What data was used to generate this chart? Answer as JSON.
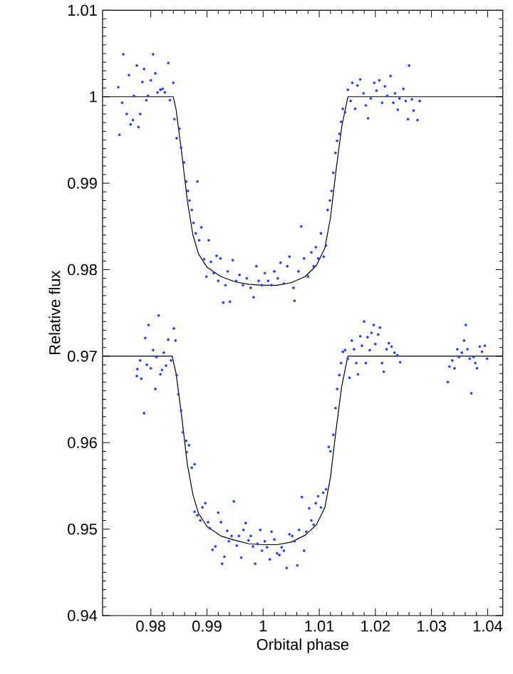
{
  "chart_data": {
    "type": "scatter",
    "xlabel": "Orbital phase",
    "ylabel": "Relative flux",
    "xlim": [
      0.9714,
      1.0427
    ],
    "ylim": [
      0.94,
      1.01
    ],
    "xticks": [
      0.98,
      0.99,
      1,
      1.01,
      1.02,
      1.03,
      1.04
    ],
    "yticks": [
      0.94,
      0.95,
      0.96,
      0.97,
      0.98,
      0.99,
      1,
      1.01
    ],
    "grid": false,
    "series": [
      {
        "marker": "circle",
        "color": "#1a3cff",
        "x": [
          0.9742,
          0.9744,
          0.9751,
          0.9749,
          0.9757,
          0.9761,
          0.9764,
          0.9768,
          0.977,
          0.9775,
          0.9778,
          0.9781,
          0.9785,
          0.9788,
          0.9792,
          0.9795,
          0.98,
          0.9804,
          0.9808,
          0.9812,
          0.9817,
          0.9821,
          0.9825,
          0.9831,
          0.9834,
          0.984,
          0.9842,
          0.9846,
          0.9851,
          0.9854,
          0.9859,
          0.9863,
          0.9866,
          0.9869,
          0.9873,
          0.9876,
          0.9883,
          0.988,
          0.9886,
          0.989,
          0.9895,
          0.9899,
          0.9903,
          0.9907,
          0.9912,
          0.9917,
          0.992,
          0.9924,
          0.9929,
          0.9933,
          0.9937,
          0.9941,
          0.9946,
          0.9952,
          0.9958,
          0.9964,
          0.9971,
          0.9978,
          0.9983,
          0.9988,
          0.9992,
          0.9998,
          1.0003,
          1.0009,
          1.0015,
          1.002,
          1.0026,
          1.0031,
          1.0037,
          1.0043,
          1.0047,
          1.0054,
          1.0056,
          1.0063,
          1.0068,
          1.0073,
          1.008,
          1.0086,
          1.009,
          1.0094,
          1.0098,
          1.0103,
          1.0108,
          1.0112,
          1.0115,
          1.0119,
          1.0122,
          1.0125,
          1.0129,
          1.0132,
          1.0136,
          1.0139,
          1.0142,
          1.0146,
          1.0151,
          1.0156,
          1.0159,
          1.0164,
          1.0168,
          1.0173,
          1.0179,
          1.0183,
          1.0187,
          1.0192,
          1.0198,
          1.0202,
          1.0207,
          1.0212,
          1.0217,
          1.0221,
          1.0227,
          1.0232,
          1.0235,
          1.024,
          1.0243,
          1.025,
          1.0254,
          1.0258,
          1.026,
          1.0265,
          1.0268,
          1.0275,
          1.0279
        ],
        "values": [
          1.0011,
          0.9956,
          1.0049,
          0.9993,
          0.998,
          1.0025,
          0.9968,
          0.9973,
          1.0001,
          1.0036,
          0.9965,
          0.998,
          1.0017,
          1.0032,
          0.9996,
          1.0001,
          1.0019,
          1.0049,
          1.0027,
          1.0005,
          1.0008,
          1.0009,
          1.0005,
          1.0039,
          0.9996,
          1.0016,
          0.9974,
          0.9952,
          0.9963,
          0.9941,
          0.9924,
          0.9902,
          0.9891,
          0.988,
          0.9869,
          0.9854,
          0.9902,
          0.9842,
          0.9834,
          0.9849,
          0.9812,
          0.9792,
          0.9834,
          0.9809,
          0.9796,
          0.9816,
          0.9787,
          0.9813,
          0.9762,
          0.9782,
          0.9798,
          0.9763,
          0.9811,
          0.9787,
          0.9794,
          0.9782,
          0.979,
          0.9779,
          0.9768,
          0.9804,
          0.9787,
          0.9782,
          0.9796,
          0.9787,
          0.9782,
          0.9798,
          0.979,
          0.9808,
          0.9784,
          0.9804,
          0.9815,
          0.9779,
          0.9764,
          0.9798,
          0.985,
          0.9813,
          0.9792,
          0.982,
          0.9804,
          0.9826,
          0.9813,
          0.9842,
          0.9815,
          0.9828,
          0.9869,
          0.988,
          0.9891,
          0.9912,
          0.9935,
          0.9949,
          0.9957,
          0.9971,
          0.9986,
          0.9982,
          1.0008,
          0.9995,
          1.0016,
          0.9986,
          1.0013,
          1.002,
          1.0004,
          0.999,
          0.9975,
          0.9998,
          1.0016,
          1.0007,
          1.0019,
          0.9993,
          1.0012,
          1.0001,
          1.0024,
          0.9993,
          1.0004,
          0.9985,
          0.9998,
          1.0009,
          0.9995,
          0.9974,
          1.0036,
          0.9997,
          0.9984,
          0.9973,
          0.9995
        ]
      },
      {
        "marker": "circle",
        "color": "#1a3cff",
        "x": [
          0.9775,
          0.9776,
          0.9781,
          0.9783,
          0.9788,
          0.979,
          0.9793,
          0.9796,
          0.98,
          0.9804,
          0.9808,
          0.981,
          0.9814,
          0.9817,
          0.982,
          0.9823,
          0.9827,
          0.9831,
          0.9836,
          0.9841,
          0.9844,
          0.9846,
          0.9849,
          0.9854,
          0.9857,
          0.9863,
          0.9864,
          0.9868,
          0.9873,
          0.9878,
          0.9878,
          0.9883,
          0.9888,
          0.9892,
          0.9897,
          0.9902,
          0.9905,
          0.991,
          0.9915,
          0.992,
          0.9925,
          0.9927,
          0.9931,
          0.9936,
          0.9939,
          0.9944,
          0.9948,
          0.9953,
          0.9957,
          0.9961,
          0.9965,
          0.9969,
          0.9974,
          0.9978,
          0.9982,
          0.9986,
          0.999,
          0.9995,
          0.9998,
          1.0003,
          1.0007,
          1.0012,
          1.0015,
          1.002,
          1.0025,
          1.0029,
          1.0033,
          1.0037,
          1.0042,
          1.0047,
          1.0052,
          1.0056,
          1.0061,
          1.0064,
          1.0069,
          1.0073,
          1.0077,
          1.0082,
          1.0086,
          1.009,
          1.0094,
          1.0098,
          1.0103,
          1.0107,
          1.0112,
          1.0117,
          1.012,
          1.0125,
          1.0129,
          1.0132,
          1.0136,
          1.0139,
          1.0142,
          1.0146,
          1.0151,
          1.0154,
          1.0158,
          1.0162,
          1.0166,
          1.0169,
          1.0173,
          1.0176,
          1.018,
          1.0183,
          1.0186,
          1.019,
          1.0193,
          1.0197,
          1.02,
          1.0205,
          1.0208,
          1.0212,
          1.0215,
          1.022,
          1.0224,
          1.0229,
          1.0234,
          1.0239,
          1.0244,
          1.0329,
          1.0332,
          1.0337,
          1.0341,
          1.0346,
          1.0349,
          1.0354,
          1.0358,
          1.0361,
          1.0364,
          1.0368,
          1.0371,
          1.0375,
          1.0378,
          1.0381,
          1.0386,
          1.039,
          1.0395,
          1.0399
        ],
        "values": [
          0.9677,
          0.9685,
          0.9695,
          0.9674,
          0.9634,
          0.9721,
          0.969,
          0.9736,
          0.9686,
          0.9707,
          0.9662,
          0.9699,
          0.9747,
          0.9679,
          0.9684,
          0.9704,
          0.9689,
          0.9719,
          0.9695,
          0.9732,
          0.9718,
          0.9678,
          0.9656,
          0.9637,
          0.9612,
          0.9602,
          0.9589,
          0.9597,
          0.9571,
          0.9575,
          0.952,
          0.9516,
          0.951,
          0.9525,
          0.953,
          0.9508,
          0.9501,
          0.9476,
          0.948,
          0.9519,
          0.9508,
          0.946,
          0.9468,
          0.9498,
          0.9486,
          0.9492,
          0.9532,
          0.9481,
          0.9492,
          0.9467,
          0.9499,
          0.9507,
          0.9487,
          0.9492,
          0.948,
          0.946,
          0.9483,
          0.9499,
          0.9475,
          0.9486,
          0.9479,
          0.9465,
          0.9497,
          0.9488,
          0.9472,
          0.947,
          0.9479,
          0.9475,
          0.9455,
          0.9494,
          0.9492,
          0.9486,
          0.9458,
          0.9499,
          0.9537,
          0.9475,
          0.9497,
          0.9524,
          0.951,
          0.9505,
          0.953,
          0.9538,
          0.9525,
          0.9542,
          0.9546,
          0.9595,
          0.959,
          0.9609,
          0.964,
          0.9662,
          0.9678,
          0.9692,
          0.9705,
          0.9707,
          0.9697,
          0.9675,
          0.9718,
          0.9708,
          0.9692,
          0.9679,
          0.9723,
          0.9712,
          0.974,
          0.9692,
          0.9722,
          0.9707,
          0.9727,
          0.9736,
          0.9714,
          0.9725,
          0.9733,
          0.9692,
          0.9682,
          0.9708,
          0.9715,
          0.9711,
          0.9704,
          0.9701,
          0.9693,
          0.967,
          0.9688,
          0.9695,
          0.9686,
          0.9708,
          0.9699,
          0.9704,
          0.9718,
          0.9736,
          0.9708,
          0.9697,
          0.9657,
          0.9699,
          0.9692,
          0.9686,
          0.9711,
          0.9705,
          0.9712,
          0.9697
        ]
      },
      {
        "type": "line",
        "marker": "none",
        "color": "#000000",
        "x": [
          0.9714,
          0.984,
          0.9845,
          0.9855,
          0.9865,
          0.9875,
          0.9885,
          0.99,
          0.9925,
          0.995,
          0.9975,
          1.0,
          1.0025,
          1.005,
          1.0075,
          1.0095,
          1.011,
          1.012,
          1.013,
          1.014,
          1.0151,
          1.0427
        ],
        "values": [
          1,
          1,
          0.9985,
          0.9935,
          0.988,
          0.984,
          0.9818,
          0.9803,
          0.9792,
          0.9786,
          0.9783,
          0.9782,
          0.9782,
          0.9785,
          0.9792,
          0.9805,
          0.9825,
          0.986,
          0.9915,
          0.9965,
          1,
          1
        ]
      },
      {
        "type": "line",
        "marker": "none",
        "color": "#000000",
        "x": [
          0.9714,
          0.9838,
          0.9845,
          0.9855,
          0.9865,
          0.9875,
          0.9885,
          0.99,
          0.9925,
          0.995,
          0.9975,
          1.0,
          1.0025,
          1.005,
          1.0075,
          1.0095,
          1.011,
          1.012,
          1.013,
          1.014,
          1.0151,
          1.0427
        ],
        "values": [
          0.97,
          0.97,
          0.968,
          0.963,
          0.9575,
          0.954,
          0.9518,
          0.9503,
          0.9492,
          0.9487,
          0.9483,
          0.9482,
          0.9482,
          0.9485,
          0.9493,
          0.9505,
          0.9525,
          0.956,
          0.9615,
          0.9665,
          0.97,
          0.97
        ]
      }
    ]
  }
}
